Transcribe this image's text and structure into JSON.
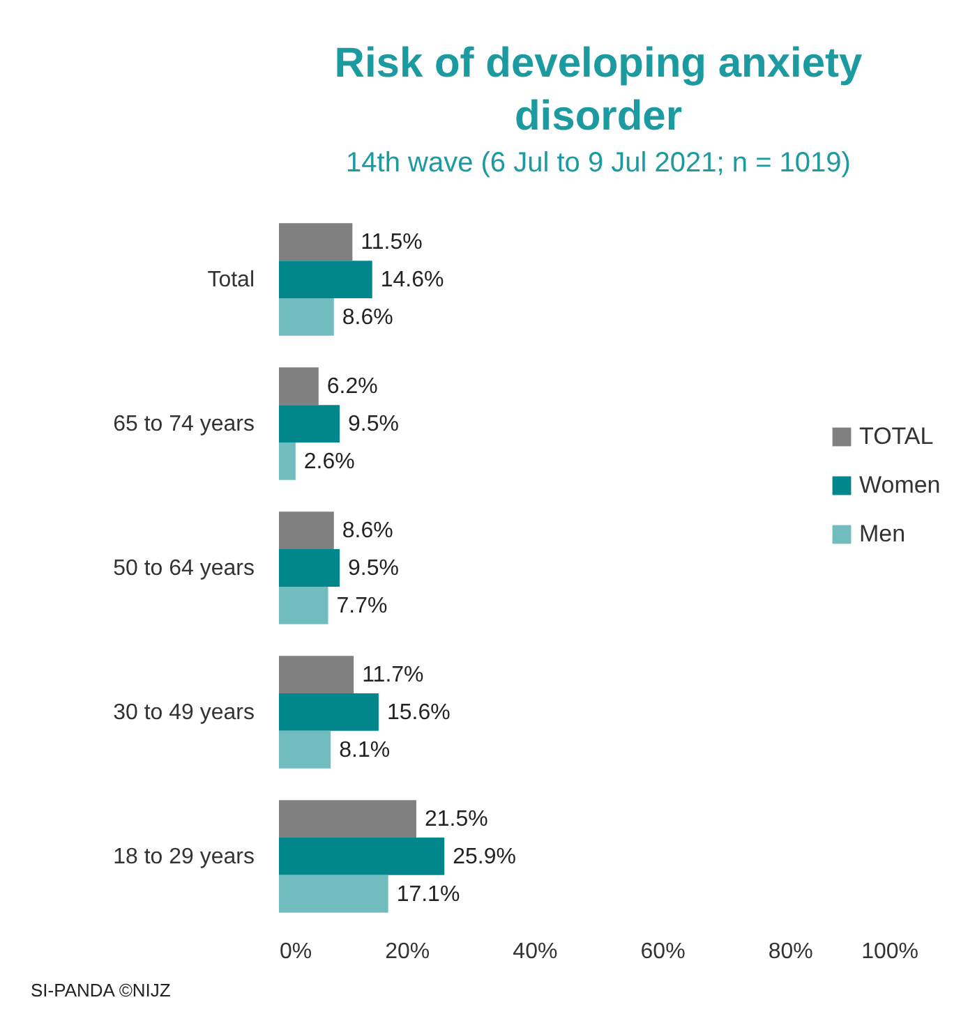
{
  "chart_data": {
    "type": "bar",
    "orientation": "horizontal",
    "title": "Risk of developing anxiety disorder",
    "subtitle": "14th wave (6 Jul to 9 Jul 2021; n = 1019)",
    "categories": [
      "Total",
      "65 to 74 years",
      "50 to 64 years",
      "30 to 49 years",
      "18 to 29 years"
    ],
    "series": [
      {
        "name": "TOTAL",
        "color": "#808080",
        "values": [
          11.5,
          6.2,
          8.6,
          11.7,
          21.5
        ],
        "value_labels": [
          "11.5%",
          "6.2%",
          "8.6%",
          "11.7%",
          "21.5%"
        ]
      },
      {
        "name": "Women",
        "color": "#00868b",
        "values": [
          14.6,
          9.5,
          9.5,
          15.6,
          25.9
        ],
        "value_labels": [
          "14.6%",
          "9.5%",
          "9.5%",
          "15.6%",
          "25.9%"
        ]
      },
      {
        "name": "Men",
        "color": "#70bcbf",
        "values": [
          8.6,
          2.6,
          7.7,
          8.1,
          17.1
        ],
        "value_labels": [
          "8.6%",
          "2.6%",
          "7.7%",
          "8.1%",
          "17.1%"
        ]
      }
    ],
    "xlim": [
      0,
      100
    ],
    "xticks": [
      {
        "value": 0,
        "label": "0%"
      },
      {
        "value": 20,
        "label": "20%"
      },
      {
        "value": 40,
        "label": "40%"
      },
      {
        "value": 60,
        "label": "60%"
      },
      {
        "value": 80,
        "label": "80%"
      },
      {
        "value": 100,
        "label": "100%"
      }
    ],
    "legend": "right",
    "annotations": [
      "SI-PANDA ©NIJZ"
    ]
  }
}
